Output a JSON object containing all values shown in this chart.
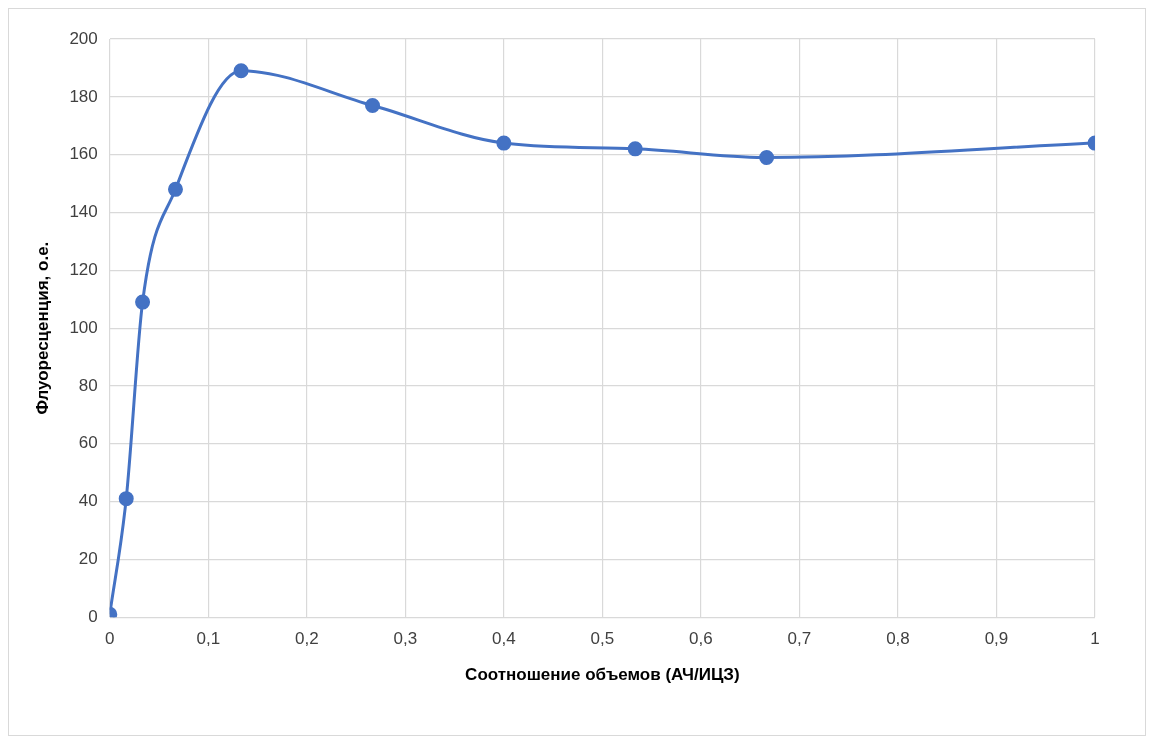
{
  "chart_data": {
    "type": "line",
    "xlabel": "Соотношение объемов (АЧ/ИЦЗ)",
    "ylabel": "Флуоресценция, о.е.",
    "x": [
      0,
      0.0167,
      0.0333,
      0.0667,
      0.1333,
      0.2667,
      0.4,
      0.5333,
      0.6667,
      1
    ],
    "series": [
      {
        "color": "#4472c4",
        "values": [
          1,
          41,
          109,
          148,
          189,
          177,
          164,
          162,
          159,
          164
        ]
      }
    ],
    "xlim": [
      0,
      1
    ],
    "xticks": [
      {
        "value": 0,
        "label": "0"
      },
      {
        "value": 0.1,
        "label": "0,1"
      },
      {
        "value": 0.2,
        "label": "0,2"
      },
      {
        "value": 0.3,
        "label": "0,3"
      },
      {
        "value": 0.4,
        "label": "0,4"
      },
      {
        "value": 0.5,
        "label": "0,5"
      },
      {
        "value": 0.6,
        "label": "0,6"
      },
      {
        "value": 0.7,
        "label": "0,7"
      },
      {
        "value": 0.8,
        "label": "0,8"
      },
      {
        "value": 0.9,
        "label": "0,9"
      },
      {
        "value": 1,
        "label": "1"
      }
    ],
    "ylim": [
      0,
      200
    ],
    "yticks": [
      0,
      20,
      40,
      60,
      80,
      100,
      120,
      140,
      160,
      180,
      200
    ],
    "grid": true,
    "marker": "circle",
    "line_style": "solid"
  }
}
